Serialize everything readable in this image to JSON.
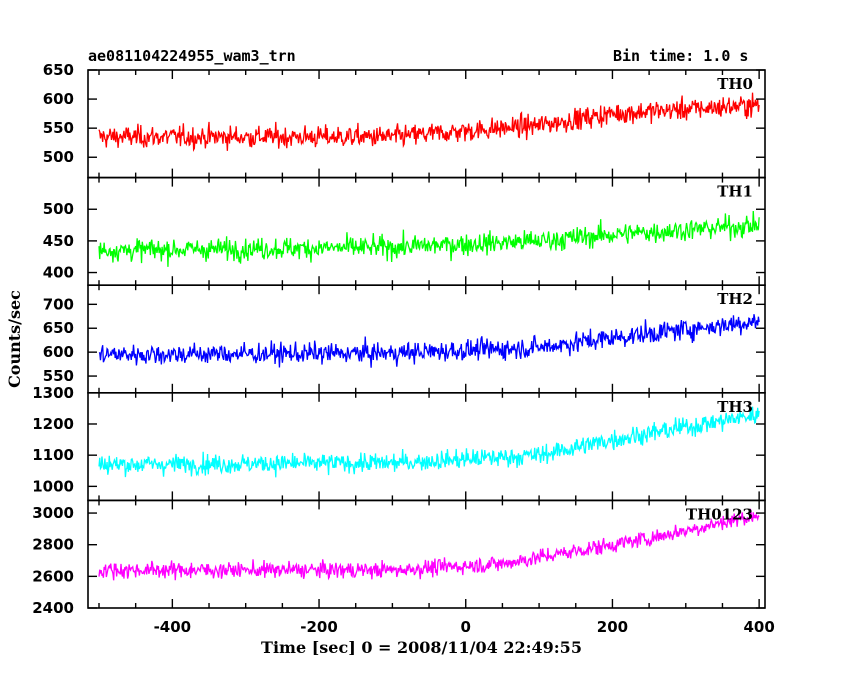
{
  "header": {
    "left_title": "ae081104224955_wam3_trn",
    "right_title": "Bin time: 1.0 s"
  },
  "chart_data": {
    "type": "line",
    "xlabel": "Time [sec] 0 = 2008/11/04 22:49:55",
    "ylabel": "Counts/sec",
    "xlim": [
      -515,
      408
    ],
    "x_ticks": [
      -400,
      -200,
      0,
      200,
      400
    ],
    "x_data_range": [
      -500,
      400
    ],
    "panels": [
      {
        "name": "TH0",
        "color": "#ff0000",
        "ylim": [
          465,
          650
        ],
        "y_ticks": [
          500,
          550,
          600,
          650
        ],
        "y_ticks_show": [
          500,
          550,
          600,
          650
        ],
        "trend": [
          [
            -500,
            535
          ],
          [
            -100,
            535
          ],
          [
            100,
            555
          ],
          [
            200,
            575
          ],
          [
            400,
            590
          ]
        ],
        "noise": 24
      },
      {
        "name": "TH1",
        "color": "#00ff00",
        "ylim": [
          380,
          550
        ],
        "y_ticks": [
          400,
          450,
          500,
          550
        ],
        "y_ticks_show": [
          400,
          450,
          500
        ],
        "trend": [
          [
            -500,
            435
          ],
          [
            -100,
            440
          ],
          [
            100,
            450
          ],
          [
            200,
            460
          ],
          [
            400,
            475
          ]
        ],
        "noise": 22
      },
      {
        "name": "TH2",
        "color": "#0000ff",
        "ylim": [
          515,
          740
        ],
        "y_ticks": [
          550,
          600,
          650,
          700
        ],
        "y_ticks_show": [
          550,
          600,
          650,
          700
        ],
        "trend": [
          [
            -500,
            595
          ],
          [
            -100,
            598
          ],
          [
            100,
            610
          ],
          [
            200,
            630
          ],
          [
            400,
            665
          ]
        ],
        "noise": 28
      },
      {
        "name": "TH3",
        "color": "#00ffff",
        "ylim": [
          955,
          1300
        ],
        "y_ticks": [
          1000,
          1100,
          1200,
          1300
        ],
        "y_ticks_show": [
          1000,
          1100,
          1200,
          1300
        ],
        "trend": [
          [
            -500,
            1070
          ],
          [
            -100,
            1075
          ],
          [
            100,
            1100
          ],
          [
            200,
            1150
          ],
          [
            400,
            1230
          ]
        ],
        "noise": 40
      },
      {
        "name": "TH0123",
        "color": "#ff00ff",
        "ylim": [
          2400,
          3080
        ],
        "y_ticks": [
          2400,
          2600,
          2800,
          3000
        ],
        "y_ticks_show": [
          2400,
          2600,
          2800,
          3000
        ],
        "trend": [
          [
            -500,
            2640
          ],
          [
            -100,
            2640
          ],
          [
            50,
            2680
          ],
          [
            150,
            2760
          ],
          [
            250,
            2840
          ],
          [
            400,
            2990
          ]
        ],
        "noise": 65
      }
    ]
  }
}
